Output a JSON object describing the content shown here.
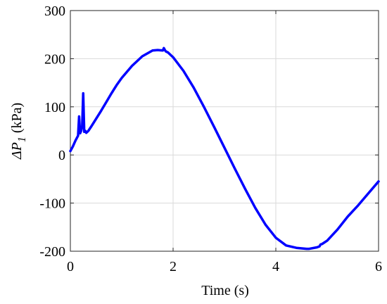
{
  "chart_data": {
    "type": "line",
    "title": "",
    "xlabel": "Time (s)",
    "ylabel_main": "ΔP",
    "ylabel_sub": "1",
    "ylabel_unit": " (kPa)",
    "xlim": [
      0,
      6
    ],
    "ylim": [
      -200,
      300
    ],
    "xticks": [
      0,
      2,
      4,
      6
    ],
    "xtick_labels": [
      "0",
      "2",
      "4",
      "6"
    ],
    "yticks": [
      -200,
      -100,
      0,
      100,
      200,
      300
    ],
    "ytick_labels": [
      "-200",
      "-100",
      "0",
      "100",
      "200",
      "300"
    ],
    "grid": true,
    "legend": false,
    "series": [
      {
        "color": "#0000ff",
        "x": [
          0,
          0.05,
          0.1,
          0.15,
          0.17,
          0.19,
          0.21,
          0.23,
          0.25,
          0.27,
          0.29,
          0.31,
          0.35,
          0.4,
          0.5,
          0.6,
          0.7,
          0.8,
          0.9,
          1.0,
          1.2,
          1.4,
          1.6,
          1.7,
          1.8,
          1.82,
          1.84,
          1.86,
          1.9,
          2.0,
          2.2,
          2.4,
          2.6,
          2.8,
          3.0,
          3.2,
          3.4,
          3.6,
          3.8,
          4.0,
          4.2,
          4.4,
          4.6,
          4.65,
          4.8,
          4.85,
          4.87,
          4.9,
          5.0,
          5.2,
          5.4,
          5.6,
          5.8,
          6.0
        ],
        "y": [
          8,
          18,
          30,
          40,
          80,
          45,
          50,
          60,
          128,
          48,
          50,
          46,
          50,
          58,
          75,
          92,
          110,
          128,
          145,
          160,
          185,
          205,
          217,
          218,
          217,
          222,
          218,
          215,
          213,
          203,
          175,
          140,
          100,
          58,
          15,
          -28,
          -70,
          -110,
          -145,
          -172,
          -188,
          -193,
          -195,
          -195,
          -192,
          -190,
          -186,
          -185,
          -178,
          -155,
          -128,
          -105,
          -80,
          -55
        ]
      }
    ]
  }
}
